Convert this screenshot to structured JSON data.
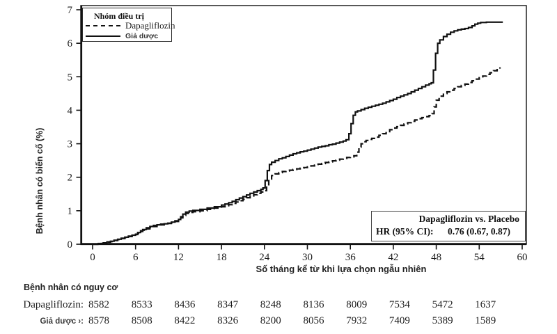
{
  "figure": {
    "kind": "Kaplan-Meier cumulative incidence plot, scanned clinical-trial figure (Vietnamese labels)"
  },
  "chart_data": {
    "type": "line",
    "subtype": "kaplan-meier-step",
    "title": "",
    "xlabel": "Số tháng kể từ khi lựa chọn ngẫu nhiên",
    "ylabel": "Bệnh nhân có biến cố (%)",
    "xlim": [
      0,
      60
    ],
    "ylim": [
      0,
      7
    ],
    "xticks": [
      0,
      6,
      12,
      18,
      24,
      30,
      36,
      42,
      48,
      54,
      60
    ],
    "yticks": [
      0,
      1,
      2,
      3,
      4,
      5,
      6,
      7
    ],
    "grid": false,
    "legend_title": "Nhóm điều trị",
    "legend_position": "top-left-inside",
    "series": [
      {
        "name": "Dapagliflozin",
        "style": "dashed",
        "points": [
          [
            0,
            0
          ],
          [
            0.8,
            0.02
          ],
          [
            1.5,
            0.04
          ],
          [
            2,
            0.06
          ],
          [
            2.5,
            0.08
          ],
          [
            3,
            0.11
          ],
          [
            3.5,
            0.14
          ],
          [
            4,
            0.17
          ],
          [
            4.5,
            0.2
          ],
          [
            5,
            0.23
          ],
          [
            5.5,
            0.26
          ],
          [
            6,
            0.29
          ],
          [
            6.3,
            0.33
          ],
          [
            6.7,
            0.38
          ],
          [
            7,
            0.42
          ],
          [
            7.5,
            0.46
          ],
          [
            8,
            0.5
          ],
          [
            8.5,
            0.53
          ],
          [
            9,
            0.56
          ],
          [
            9.5,
            0.58
          ],
          [
            10,
            0.6
          ],
          [
            10.5,
            0.62
          ],
          [
            11,
            0.64
          ],
          [
            11.5,
            0.68
          ],
          [
            12,
            0.72
          ],
          [
            12.3,
            0.79
          ],
          [
            12.6,
            0.86
          ],
          [
            13,
            0.92
          ],
          [
            13.5,
            0.95
          ],
          [
            14,
            0.97
          ],
          [
            15,
            1.0
          ],
          [
            16,
            1.04
          ],
          [
            17,
            1.08
          ],
          [
            18,
            1.12
          ],
          [
            18.5,
            1.15
          ],
          [
            19,
            1.18
          ],
          [
            19.5,
            1.22
          ],
          [
            20,
            1.26
          ],
          [
            20.5,
            1.3
          ],
          [
            21,
            1.34
          ],
          [
            21.5,
            1.39
          ],
          [
            22,
            1.44
          ],
          [
            22.5,
            1.48
          ],
          [
            23,
            1.52
          ],
          [
            23.5,
            1.56
          ],
          [
            24,
            1.6
          ],
          [
            24.3,
            1.75
          ],
          [
            24.6,
            1.95
          ],
          [
            25,
            2.05
          ],
          [
            25.5,
            2.1
          ],
          [
            26,
            2.14
          ],
          [
            26.5,
            2.17
          ],
          [
            27,
            2.19
          ],
          [
            27.5,
            2.21
          ],
          [
            28,
            2.23
          ],
          [
            28.5,
            2.25
          ],
          [
            29,
            2.27
          ],
          [
            29.5,
            2.29
          ],
          [
            30,
            2.31
          ],
          [
            30.5,
            2.34
          ],
          [
            31,
            2.36
          ],
          [
            31.5,
            2.39
          ],
          [
            32,
            2.41
          ],
          [
            32.5,
            2.44
          ],
          [
            33,
            2.46
          ],
          [
            33.5,
            2.49
          ],
          [
            34,
            2.51
          ],
          [
            34.5,
            2.54
          ],
          [
            35,
            2.56
          ],
          [
            35.5,
            2.59
          ],
          [
            36,
            2.61
          ],
          [
            36.5,
            2.64
          ],
          [
            36.9,
            2.75
          ],
          [
            37.2,
            2.9
          ],
          [
            37.5,
            3.0
          ],
          [
            37.8,
            3.06
          ],
          [
            38.2,
            3.1
          ],
          [
            38.6,
            3.13
          ],
          [
            39,
            3.16
          ],
          [
            39.5,
            3.2
          ],
          [
            40,
            3.25
          ],
          [
            40.5,
            3.3
          ],
          [
            41,
            3.36
          ],
          [
            41.5,
            3.42
          ],
          [
            42,
            3.47
          ],
          [
            42.5,
            3.51
          ],
          [
            43,
            3.55
          ],
          [
            43.5,
            3.59
          ],
          [
            44,
            3.63
          ],
          [
            44.5,
            3.67
          ],
          [
            45,
            3.71
          ],
          [
            45.5,
            3.75
          ],
          [
            46,
            3.78
          ],
          [
            46.5,
            3.81
          ],
          [
            47,
            3.84
          ],
          [
            47.4,
            3.9
          ],
          [
            47.7,
            4.1
          ],
          [
            48,
            4.3
          ],
          [
            48.4,
            4.42
          ],
          [
            49,
            4.5
          ],
          [
            49.5,
            4.55
          ],
          [
            50,
            4.6
          ],
          [
            50.5,
            4.65
          ],
          [
            51,
            4.7
          ],
          [
            51.5,
            4.74
          ],
          [
            52,
            4.78
          ],
          [
            52.5,
            4.83
          ],
          [
            53,
            4.88
          ],
          [
            53.5,
            4.93
          ],
          [
            54,
            4.97
          ],
          [
            54.5,
            5.02
          ],
          [
            55,
            5.07
          ],
          [
            55.5,
            5.12
          ],
          [
            56,
            5.18
          ],
          [
            56.5,
            5.24
          ],
          [
            56.9,
            5.28
          ]
        ]
      },
      {
        "name": "Giả dược",
        "style": "solid",
        "points": [
          [
            0,
            0
          ],
          [
            0.8,
            0.02
          ],
          [
            1.5,
            0.04
          ],
          [
            2,
            0.07
          ],
          [
            2.5,
            0.09
          ],
          [
            3,
            0.12
          ],
          [
            3.5,
            0.15
          ],
          [
            4,
            0.18
          ],
          [
            4.5,
            0.21
          ],
          [
            5,
            0.24
          ],
          [
            5.5,
            0.27
          ],
          [
            6,
            0.3
          ],
          [
            6.3,
            0.35
          ],
          [
            6.7,
            0.4
          ],
          [
            7,
            0.44
          ],
          [
            7.5,
            0.49
          ],
          [
            8,
            0.53
          ],
          [
            8.5,
            0.56
          ],
          [
            9,
            0.58
          ],
          [
            9.5,
            0.6
          ],
          [
            10,
            0.61
          ],
          [
            10.5,
            0.63
          ],
          [
            11,
            0.66
          ],
          [
            11.5,
            0.7
          ],
          [
            12,
            0.74
          ],
          [
            12.3,
            0.82
          ],
          [
            12.6,
            0.9
          ],
          [
            13,
            0.96
          ],
          [
            13.5,
            0.99
          ],
          [
            14,
            1.01
          ],
          [
            15,
            1.04
          ],
          [
            16,
            1.08
          ],
          [
            17,
            1.12
          ],
          [
            18,
            1.17
          ],
          [
            18.5,
            1.2
          ],
          [
            19,
            1.24
          ],
          [
            19.5,
            1.28
          ],
          [
            20,
            1.33
          ],
          [
            20.5,
            1.38
          ],
          [
            21,
            1.42
          ],
          [
            21.5,
            1.47
          ],
          [
            22,
            1.52
          ],
          [
            22.5,
            1.56
          ],
          [
            23,
            1.6
          ],
          [
            23.5,
            1.64
          ],
          [
            23.8,
            1.68
          ],
          [
            24.1,
            1.9
          ],
          [
            24.4,
            2.2
          ],
          [
            24.7,
            2.38
          ],
          [
            25,
            2.45
          ],
          [
            25.5,
            2.5
          ],
          [
            26,
            2.55
          ],
          [
            26.5,
            2.58
          ],
          [
            27,
            2.62
          ],
          [
            27.5,
            2.66
          ],
          [
            28,
            2.7
          ],
          [
            28.5,
            2.73
          ],
          [
            29,
            2.76
          ],
          [
            29.5,
            2.78
          ],
          [
            30,
            2.81
          ],
          [
            30.5,
            2.84
          ],
          [
            31,
            2.87
          ],
          [
            31.5,
            2.9
          ],
          [
            32,
            2.92
          ],
          [
            32.5,
            2.94
          ],
          [
            33,
            2.97
          ],
          [
            33.5,
            2.99
          ],
          [
            34,
            3.02
          ],
          [
            34.5,
            3.05
          ],
          [
            35,
            3.08
          ],
          [
            35.4,
            3.12
          ],
          [
            35.8,
            3.3
          ],
          [
            36.1,
            3.6
          ],
          [
            36.4,
            3.85
          ],
          [
            36.7,
            3.95
          ],
          [
            37,
            3.98
          ],
          [
            37.5,
            4.02
          ],
          [
            38,
            4.06
          ],
          [
            38.5,
            4.09
          ],
          [
            39,
            4.12
          ],
          [
            39.5,
            4.15
          ],
          [
            40,
            4.18
          ],
          [
            40.5,
            4.21
          ],
          [
            41,
            4.25
          ],
          [
            41.5,
            4.29
          ],
          [
            42,
            4.33
          ],
          [
            42.5,
            4.38
          ],
          [
            43,
            4.42
          ],
          [
            43.5,
            4.46
          ],
          [
            44,
            4.5
          ],
          [
            44.5,
            4.55
          ],
          [
            45,
            4.6
          ],
          [
            45.5,
            4.65
          ],
          [
            46,
            4.7
          ],
          [
            46.5,
            4.75
          ],
          [
            47,
            4.79
          ],
          [
            47.3,
            4.82
          ],
          [
            47.6,
            5.2
          ],
          [
            47.9,
            5.7
          ],
          [
            48.2,
            6.0
          ],
          [
            48.5,
            6.1
          ],
          [
            49,
            6.2
          ],
          [
            49.5,
            6.27
          ],
          [
            50,
            6.33
          ],
          [
            50.5,
            6.37
          ],
          [
            51,
            6.4
          ],
          [
            51.5,
            6.42
          ],
          [
            52,
            6.44
          ],
          [
            52.5,
            6.47
          ],
          [
            53,
            6.52
          ],
          [
            53.4,
            6.57
          ],
          [
            53.8,
            6.6
          ],
          [
            54.2,
            6.62
          ],
          [
            55,
            6.63
          ],
          [
            57.3,
            6.63
          ]
        ]
      }
    ],
    "annotation": {
      "comparison": "Dapagliflozin vs. Placebo",
      "hr_label": "HR (95% CI):",
      "hr_value": "0.76 (0.67, 0.87)"
    }
  },
  "risk_table": {
    "title": "Bệnh nhân có nguy cơ",
    "months": [
      0,
      6,
      12,
      18,
      24,
      30,
      36,
      42,
      48,
      54
    ],
    "rows": [
      {
        "label": "Dapagliflozin:",
        "values": [
          "8582",
          "8533",
          "8436",
          "8347",
          "8248",
          "8136",
          "8009",
          "7534",
          "5472",
          "1637"
        ]
      },
      {
        "label": "Giả dược ›:",
        "values": [
          "8578",
          "8508",
          "8422",
          "8326",
          "8200",
          "8056",
          "7932",
          "7409",
          "5389",
          "1589"
        ]
      }
    ]
  },
  "colors": {
    "line": "#111111",
    "text": "#1c1c1c",
    "background": "#ffffff"
  }
}
